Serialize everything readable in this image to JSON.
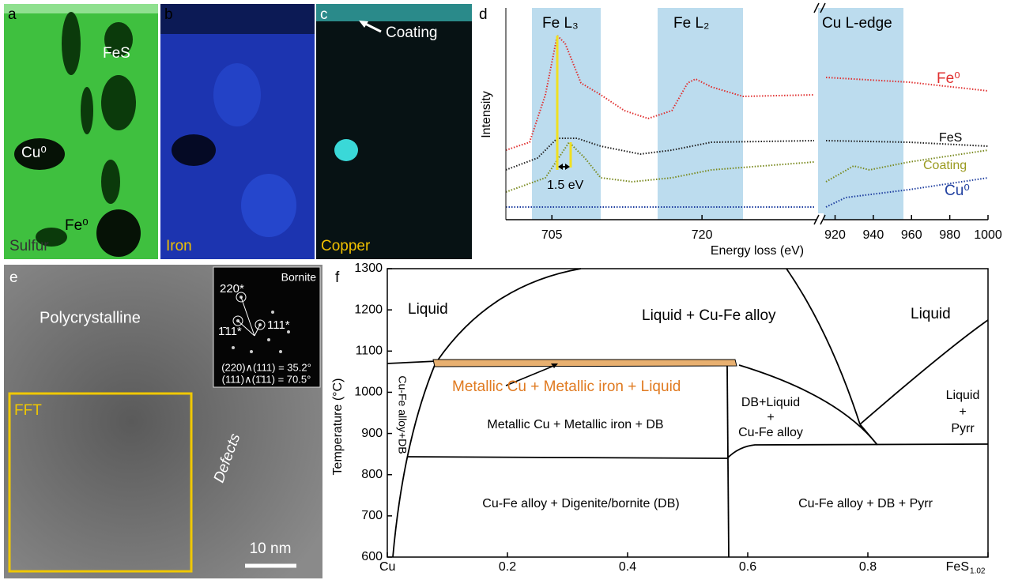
{
  "panels": {
    "a": {
      "letter": "a",
      "labels": [
        "FeS",
        "Cu⁰",
        "Fe⁰"
      ],
      "element": "Sulfur"
    },
    "b": {
      "letter": "b",
      "element": "Iron"
    },
    "c": {
      "letter": "c",
      "annotation": "Coating",
      "element": "Copper"
    },
    "d": {
      "letter": "d",
      "y_label": "Intensity",
      "x_label": "Energy loss (eV)",
      "bands": [
        "Fe L₃",
        "Fe L₂",
        "Cu L-edge"
      ],
      "series": [
        "Fe⁰",
        "FeS",
        "Coating",
        "Cu⁰"
      ],
      "shift_label": "1.5 eV",
      "x_segments": [
        {
          "lim": [
            700.4,
            731.6
          ],
          "ticks": [
            705,
            720
          ]
        },
        {
          "lim": [
            914,
            1000
          ],
          "ticks": [
            920,
            940,
            960,
            980,
            1000
          ]
        }
      ]
    },
    "e": {
      "letter": "e",
      "labels": [
        "Polycrystalline",
        "FFT",
        "Defects"
      ],
      "scale_bar": "10 nm",
      "inset": {
        "title": "Bornite",
        "spots": [
          "220*",
          "111*",
          "1̄11*"
        ],
        "angles": [
          "(220)∧(111) = 35.2°",
          "(111)∧(1̄11) = 70.5°"
        ]
      }
    },
    "f": {
      "letter": "f",
      "y_label": "Temperature (°C)",
      "ylim": [
        600,
        1300
      ],
      "yticks": [
        600,
        700,
        800,
        900,
        1000,
        1100,
        1200,
        1300
      ],
      "xlim": [
        0,
        1
      ],
      "xticks": [
        {
          "value": 0,
          "label": "Cu"
        },
        0.2,
        0.4,
        0.6,
        0.8,
        {
          "value": 1,
          "label": "FeS",
          "sub": "1.02"
        }
      ],
      "regions": [
        "Liquid",
        "Liquid + Cu-Fe alloy",
        "Liquid",
        "Metallic Cu + Metallic iron + Liquid",
        "Cu-Fe alloy+DB",
        "Metallic Cu + Metallic iron + DB",
        "DB+Liquid",
        "+",
        "Cu-Fe alloy",
        "Liquid",
        "+",
        "Pyrr",
        "Cu-Fe alloy + Digenite/bornite (DB)",
        "Cu-Fe alloy +  DB + Pyrr"
      ]
    }
  }
}
